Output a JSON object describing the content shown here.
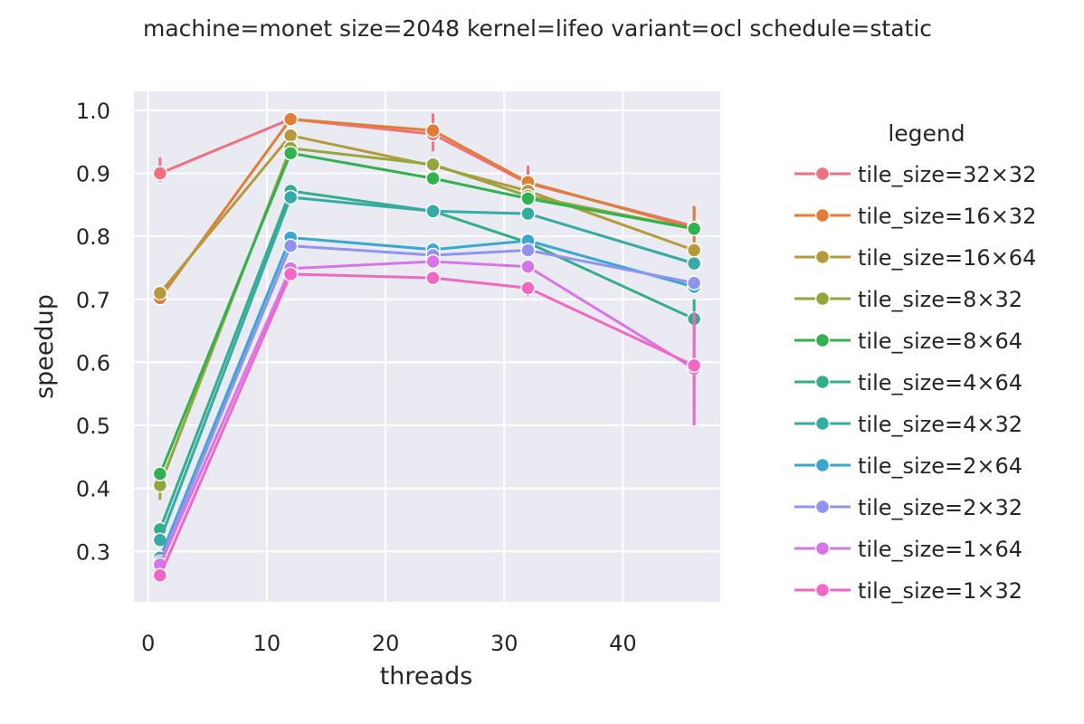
{
  "chart_data": {
    "type": "line",
    "title": "machine=monet size=2048 kernel=lifeo variant=ocl schedule=static",
    "xlabel": "threads",
    "ylabel": "speedup",
    "x": [
      1,
      12,
      24,
      32,
      46
    ],
    "xlim": [
      -1.2,
      48.2
    ],
    "ylim": [
      0.22,
      1.03
    ],
    "xticks": [
      0,
      10,
      20,
      30,
      40
    ],
    "yticks": [
      0.3,
      0.4,
      0.5,
      0.6,
      0.7,
      0.8,
      0.9,
      1.0
    ],
    "grid": true,
    "legend_title": "legend",
    "legend_position": "right",
    "series": [
      {
        "name": "tile_size=32×32",
        "color": "#f0707f",
        "values": [
          0.9,
          0.986,
          0.962,
          0.884,
          0.816
        ],
        "err": [
          [
            0.887,
            0.925
          ],
          null,
          [
            0.935,
            0.995
          ],
          [
            0.862,
            0.912
          ],
          [
            0.795,
            0.845
          ]
        ]
      },
      {
        "name": "tile_size=16×32",
        "color": "#e07e37",
        "values": [
          0.702,
          0.986,
          0.968,
          0.886,
          0.813
        ],
        "err": [
          null,
          null,
          null,
          null,
          [
            0.79,
            0.848
          ]
        ]
      },
      {
        "name": "tile_size=16×64",
        "color": "#b59a3b",
        "values": [
          0.71,
          0.96,
          0.912,
          0.872,
          0.778
        ],
        "err": []
      },
      {
        "name": "tile_size=8×32",
        "color": "#96a63a",
        "values": [
          0.405,
          0.94,
          0.914,
          0.864,
          0.812
        ],
        "err": [
          [
            0.382,
            0.425
          ],
          null,
          null,
          null,
          null
        ]
      },
      {
        "name": "tile_size=8×64",
        "color": "#32b150",
        "values": [
          0.423,
          0.932,
          0.892,
          0.86,
          0.812
        ],
        "err": []
      },
      {
        "name": "tile_size=4×64",
        "color": "#34ad8b",
        "values": [
          0.335,
          0.872,
          0.84,
          0.79,
          0.669
        ],
        "err": [
          null,
          null,
          null,
          null,
          [
            0.64,
            0.7
          ]
        ]
      },
      {
        "name": "tile_size=4×32",
        "color": "#36aba6",
        "values": [
          0.318,
          0.862,
          0.84,
          0.836,
          0.757
        ],
        "err": []
      },
      {
        "name": "tile_size=2×64",
        "color": "#39a7cf",
        "values": [
          0.29,
          0.798,
          0.779,
          0.793,
          0.72
        ],
        "err": []
      },
      {
        "name": "tile_size=2×32",
        "color": "#9193f0",
        "values": [
          0.283,
          0.785,
          0.77,
          0.778,
          0.726
        ],
        "err": []
      },
      {
        "name": "tile_size=1×64",
        "color": "#d874ea",
        "values": [
          0.279,
          0.749,
          0.76,
          0.752,
          0.59
        ],
        "err": [
          null,
          null,
          null,
          null,
          [
            0.52,
            0.65
          ]
        ]
      },
      {
        "name": "tile_size=1×32",
        "color": "#f267c4",
        "values": [
          0.262,
          0.74,
          0.734,
          0.718,
          0.595
        ],
        "err": [
          null,
          null,
          null,
          [
            0.705,
            0.728
          ],
          [
            0.5,
            0.68
          ]
        ]
      }
    ]
  }
}
